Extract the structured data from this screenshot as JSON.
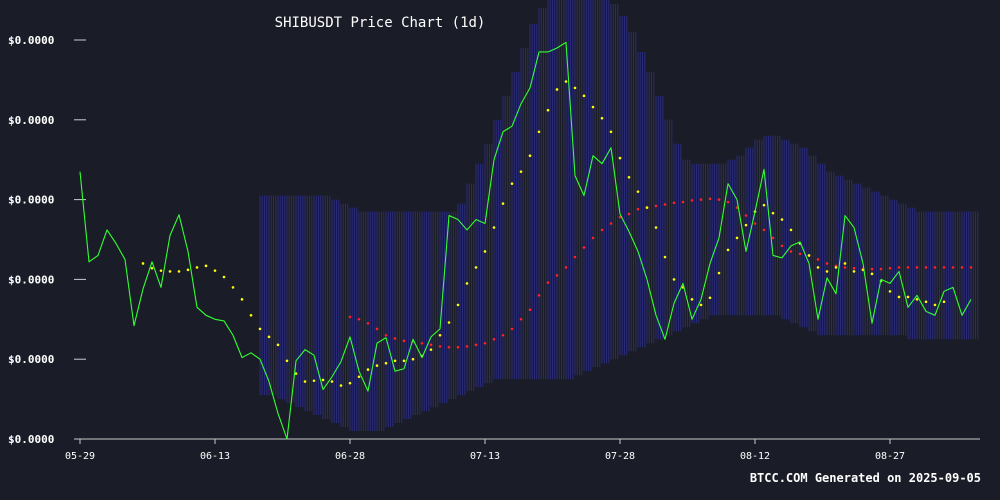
{
  "chart_data": {
    "type": "line",
    "title": "SHIBUSDT Price Chart (1d)",
    "footer": "BTCC.COM Generated on 2025-09-05",
    "y_tick_labels": [
      "$0.0000",
      "$0.0000",
      "$0.0000",
      "$0.0000",
      "$0.0000",
      "$0.0000"
    ],
    "y_tick_values": [
      0,
      1,
      2,
      3,
      4,
      5
    ],
    "ylim": [
      0,
      5
    ],
    "x_tick_labels": [
      "05-29",
      "06-13",
      "06-28",
      "07-13",
      "07-28",
      "08-12",
      "08-27"
    ],
    "x_tick_days": [
      0,
      15,
      30,
      45,
      60,
      75,
      90
    ],
    "xlim_days": [
      0,
      100
    ],
    "grid": false,
    "colors": {
      "background": "#1a1d27",
      "price": "#33ff33",
      "fast_ma": "#ffff00",
      "slow_ma": "#ff2222",
      "band": "#2c2c88",
      "text": "#ffffff",
      "axis": "#cccccc"
    },
    "series": [
      {
        "role": "price_line",
        "values": [
          3.35,
          2.22,
          2.3,
          2.62,
          2.45,
          2.25,
          1.42,
          1.88,
          2.22,
          1.9,
          2.55,
          2.81,
          2.35,
          1.65,
          1.55,
          1.5,
          1.48,
          1.3,
          1.02,
          1.08,
          1.0,
          0.72,
          0.32,
          0.0,
          0.98,
          1.12,
          1.05,
          0.62,
          0.78,
          0.97,
          1.28,
          0.85,
          0.6,
          1.2,
          1.27,
          0.85,
          0.88,
          1.25,
          1.02,
          1.28,
          1.38,
          2.8,
          2.75,
          2.62,
          2.75,
          2.7,
          3.5,
          3.85,
          3.92,
          4.2,
          4.4,
          4.85,
          4.85,
          4.9,
          4.97,
          3.3,
          3.05,
          3.55,
          3.45,
          3.65,
          2.82,
          2.6,
          2.35,
          2.0,
          1.55,
          1.25,
          1.7,
          1.95,
          1.5,
          1.75,
          2.2,
          2.52,
          3.2,
          3.0,
          2.35,
          2.85,
          3.38,
          2.3,
          2.27,
          2.42,
          2.47,
          2.2,
          1.5,
          2.02,
          1.82,
          2.8,
          2.65,
          2.2,
          1.45,
          2.0,
          1.95,
          2.1,
          1.65,
          1.8,
          1.6,
          1.55,
          1.85,
          1.9,
          1.55,
          1.75
        ]
      },
      {
        "role": "fast_moving_average",
        "start_day": 7,
        "values": [
          2.2,
          2.14,
          2.11,
          2.1,
          2.1,
          2.12,
          2.15,
          2.17,
          2.11,
          2.03,
          1.9,
          1.75,
          1.55,
          1.38,
          1.28,
          1.18,
          0.98,
          0.82,
          0.72,
          0.73,
          0.74,
          0.72,
          0.67,
          0.7,
          0.78,
          0.87,
          0.92,
          0.95,
          0.98,
          0.98,
          1.0,
          1.04,
          1.12,
          1.3,
          1.46,
          1.68,
          1.95,
          2.15,
          2.35,
          2.65,
          2.95,
          3.2,
          3.35,
          3.55,
          3.85,
          4.12,
          4.38,
          4.48,
          4.4,
          4.3,
          4.16,
          4.02,
          3.85,
          3.52,
          3.28,
          3.1,
          2.9,
          2.65,
          2.28,
          2.0,
          1.9,
          1.75,
          1.68,
          1.77,
          2.08,
          2.37,
          2.52,
          2.68,
          2.85,
          2.93,
          2.83,
          2.75,
          2.62,
          2.45,
          2.3,
          2.15,
          2.1,
          2.15,
          2.2,
          2.1,
          2.12,
          2.07,
          1.98,
          1.85,
          1.78,
          1.78,
          1.75,
          1.72,
          1.68,
          1.72
        ]
      },
      {
        "role": "slow_moving_average",
        "start_day": 30,
        "values": [
          1.53,
          1.5,
          1.45,
          1.38,
          1.3,
          1.26,
          1.23,
          1.22,
          1.2,
          1.18,
          1.16,
          1.15,
          1.15,
          1.16,
          1.18,
          1.2,
          1.25,
          1.3,
          1.38,
          1.5,
          1.62,
          1.8,
          1.96,
          2.05,
          2.15,
          2.28,
          2.4,
          2.52,
          2.62,
          2.7,
          2.78,
          2.82,
          2.88,
          2.9,
          2.92,
          2.94,
          2.96,
          2.97,
          2.99,
          3.0,
          3.01,
          3.0,
          2.97,
          2.9,
          2.8,
          2.7,
          2.62,
          2.52,
          2.42,
          2.35,
          2.32,
          2.3,
          2.25,
          2.2,
          2.17,
          2.15,
          2.14,
          2.13,
          2.13,
          2.13,
          2.14,
          2.15,
          2.15,
          2.15,
          2.15,
          2.15,
          2.15,
          2.15,
          2.15,
          2.15
        ]
      }
    ],
    "band": {
      "role": "band_envelope",
      "start_day": 20,
      "upper": [
        3.05,
        3.05,
        3.05,
        3.05,
        3.05,
        3.05,
        3.05,
        3.05,
        3.0,
        2.95,
        2.9,
        2.85,
        2.85,
        2.85,
        2.85,
        2.85,
        2.85,
        2.85,
        2.85,
        2.85,
        2.85,
        2.85,
        2.95,
        3.2,
        3.45,
        3.7,
        4.0,
        4.3,
        4.6,
        4.9,
        5.2,
        5.4,
        5.5,
        5.55,
        5.55,
        5.55,
        5.55,
        5.55,
        5.55,
        5.45,
        5.3,
        5.1,
        4.85,
        4.6,
        4.3,
        4.0,
        3.7,
        3.5,
        3.45,
        3.45,
        3.45,
        3.45,
        3.5,
        3.55,
        3.65,
        3.75,
        3.8,
        3.8,
        3.75,
        3.7,
        3.65,
        3.55,
        3.45,
        3.35,
        3.3,
        3.25,
        3.2,
        3.15,
        3.1,
        3.05,
        3.0,
        2.95,
        2.9,
        2.85,
        2.85,
        2.85,
        2.85,
        2.85,
        2.85,
        2.85
      ],
      "lower": [
        0.55,
        0.55,
        0.5,
        0.45,
        0.4,
        0.35,
        0.3,
        0.25,
        0.2,
        0.15,
        0.1,
        0.1,
        0.1,
        0.1,
        0.15,
        0.2,
        0.25,
        0.3,
        0.35,
        0.4,
        0.45,
        0.5,
        0.55,
        0.6,
        0.65,
        0.7,
        0.75,
        0.75,
        0.75,
        0.75,
        0.75,
        0.75,
        0.75,
        0.75,
        0.75,
        0.8,
        0.85,
        0.9,
        0.95,
        1.0,
        1.05,
        1.1,
        1.15,
        1.2,
        1.25,
        1.3,
        1.35,
        1.4,
        1.45,
        1.5,
        1.55,
        1.55,
        1.55,
        1.55,
        1.55,
        1.55,
        1.55,
        1.55,
        1.5,
        1.45,
        1.4,
        1.35,
        1.3,
        1.3,
        1.3,
        1.3,
        1.3,
        1.3,
        1.3,
        1.3,
        1.3,
        1.3,
        1.25,
        1.25,
        1.25,
        1.25,
        1.25,
        1.25,
        1.25,
        1.25
      ]
    }
  }
}
